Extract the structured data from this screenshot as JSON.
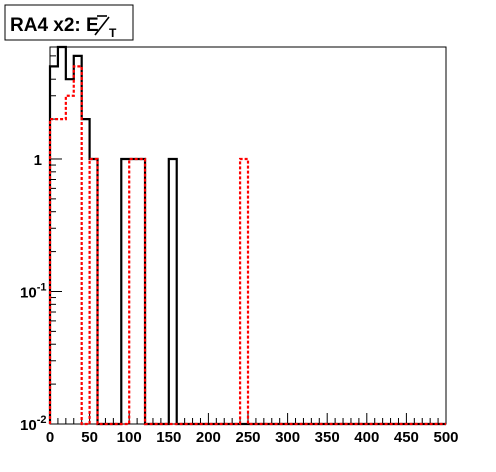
{
  "chart_data": {
    "type": "step-histogram",
    "title": "RA4 x2: E",
    "title_subscript": "T",
    "xlabel": "",
    "ylabel": "",
    "xlim": [
      0,
      500
    ],
    "ylim": [
      0.01,
      7
    ],
    "yscale": "log",
    "grid": false,
    "legend": "none",
    "x_ticks": [
      0,
      50,
      100,
      150,
      200,
      250,
      300,
      350,
      400,
      450,
      500
    ],
    "y_ticks": [
      {
        "value": 1,
        "label": "1"
      },
      {
        "value": 0.1,
        "label": "10",
        "exp": "-1"
      },
      {
        "value": 0.01,
        "label": "10",
        "exp": "-2"
      }
    ],
    "bin_width": 10,
    "series": [
      {
        "color": "#000000",
        "style": "solid",
        "values": [
          5.0,
          7.0,
          4.0,
          6.0,
          2.0,
          1.0,
          0,
          0,
          0,
          1.0,
          1.0,
          1.0,
          0,
          0,
          0,
          1.0,
          0,
          0,
          0,
          0,
          0,
          0,
          0,
          0,
          0,
          0,
          0,
          0,
          0,
          0,
          0,
          0,
          0,
          0,
          0,
          0,
          0,
          0,
          0,
          0,
          0,
          0,
          0,
          0,
          0,
          0,
          0,
          0,
          0,
          0
        ]
      },
      {
        "color": "#ff0000",
        "style": "dashed",
        "values": [
          2.0,
          2.0,
          3.0,
          5.0,
          0,
          1.0,
          0,
          0,
          0,
          0,
          1.0,
          1.0,
          0,
          0,
          0,
          0,
          0,
          0,
          0,
          0,
          0,
          0,
          0,
          0,
          1.0,
          0,
          0,
          0,
          0,
          0,
          0,
          0,
          0,
          0,
          0,
          0,
          0,
          0,
          0,
          0,
          0,
          0,
          0,
          0,
          0,
          0,
          0,
          0,
          0,
          0
        ]
      }
    ]
  }
}
